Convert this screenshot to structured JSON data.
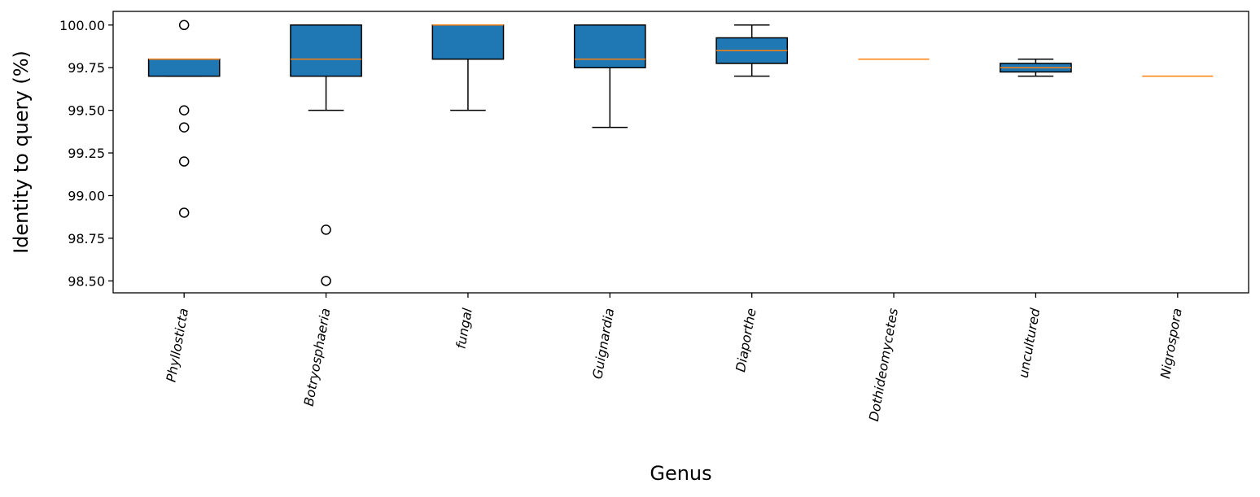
{
  "chart_data": {
    "type": "box",
    "xlabel": "Genus",
    "ylabel": "Identity to query (%)",
    "ylim": [
      98.43,
      100.08
    ],
    "yticks": [
      "98.50",
      "98.75",
      "99.00",
      "99.25",
      "99.50",
      "99.75",
      "100.00"
    ],
    "ytick_values": [
      98.5,
      98.75,
      99.0,
      99.25,
      99.5,
      99.75,
      100.0
    ],
    "grid": false,
    "colors": {
      "box_fill": "#1f77b4",
      "median": "#ff7f0e",
      "line": "#000000"
    },
    "categories": [
      "Phyllosticta",
      "Botryosphaeria",
      "fungal",
      "Guignardia",
      "Diaporthe",
      "Dothideomycetes",
      "uncultured",
      "Nigrospora"
    ],
    "boxes": [
      {
        "category": "Phyllosticta",
        "whislo": 99.7,
        "q1": 99.7,
        "median": 99.8,
        "q3": 99.8,
        "whishi": 99.8,
        "fliers": [
          100.0,
          99.5,
          99.4,
          99.2,
          98.9
        ]
      },
      {
        "category": "Botryosphaeria",
        "whislo": 99.5,
        "q1": 99.7,
        "median": 99.8,
        "q3": 100.0,
        "whishi": 100.0,
        "fliers": [
          98.8,
          98.5
        ]
      },
      {
        "category": "fungal",
        "whislo": 99.5,
        "q1": 99.8,
        "median": 100.0,
        "q3": 100.0,
        "whishi": 100.0,
        "fliers": []
      },
      {
        "category": "Guignardia",
        "whislo": 99.4,
        "q1": 99.75,
        "median": 99.8,
        "q3": 100.0,
        "whishi": 100.0,
        "fliers": []
      },
      {
        "category": "Diaporthe",
        "whislo": 99.7,
        "q1": 99.775,
        "median": 99.85,
        "q3": 99.925,
        "whishi": 100.0,
        "fliers": []
      },
      {
        "category": "Dothideomycetes",
        "whislo": 99.8,
        "q1": 99.8,
        "median": 99.8,
        "q3": 99.8,
        "whishi": 99.8,
        "fliers": []
      },
      {
        "category": "uncultured",
        "whislo": 99.7,
        "q1": 99.725,
        "median": 99.75,
        "q3": 99.775,
        "whishi": 99.8,
        "fliers": []
      },
      {
        "category": "Nigrospora",
        "whislo": 99.7,
        "q1": 99.7,
        "median": 99.7,
        "q3": 99.7,
        "whishi": 99.7,
        "fliers": []
      }
    ]
  }
}
